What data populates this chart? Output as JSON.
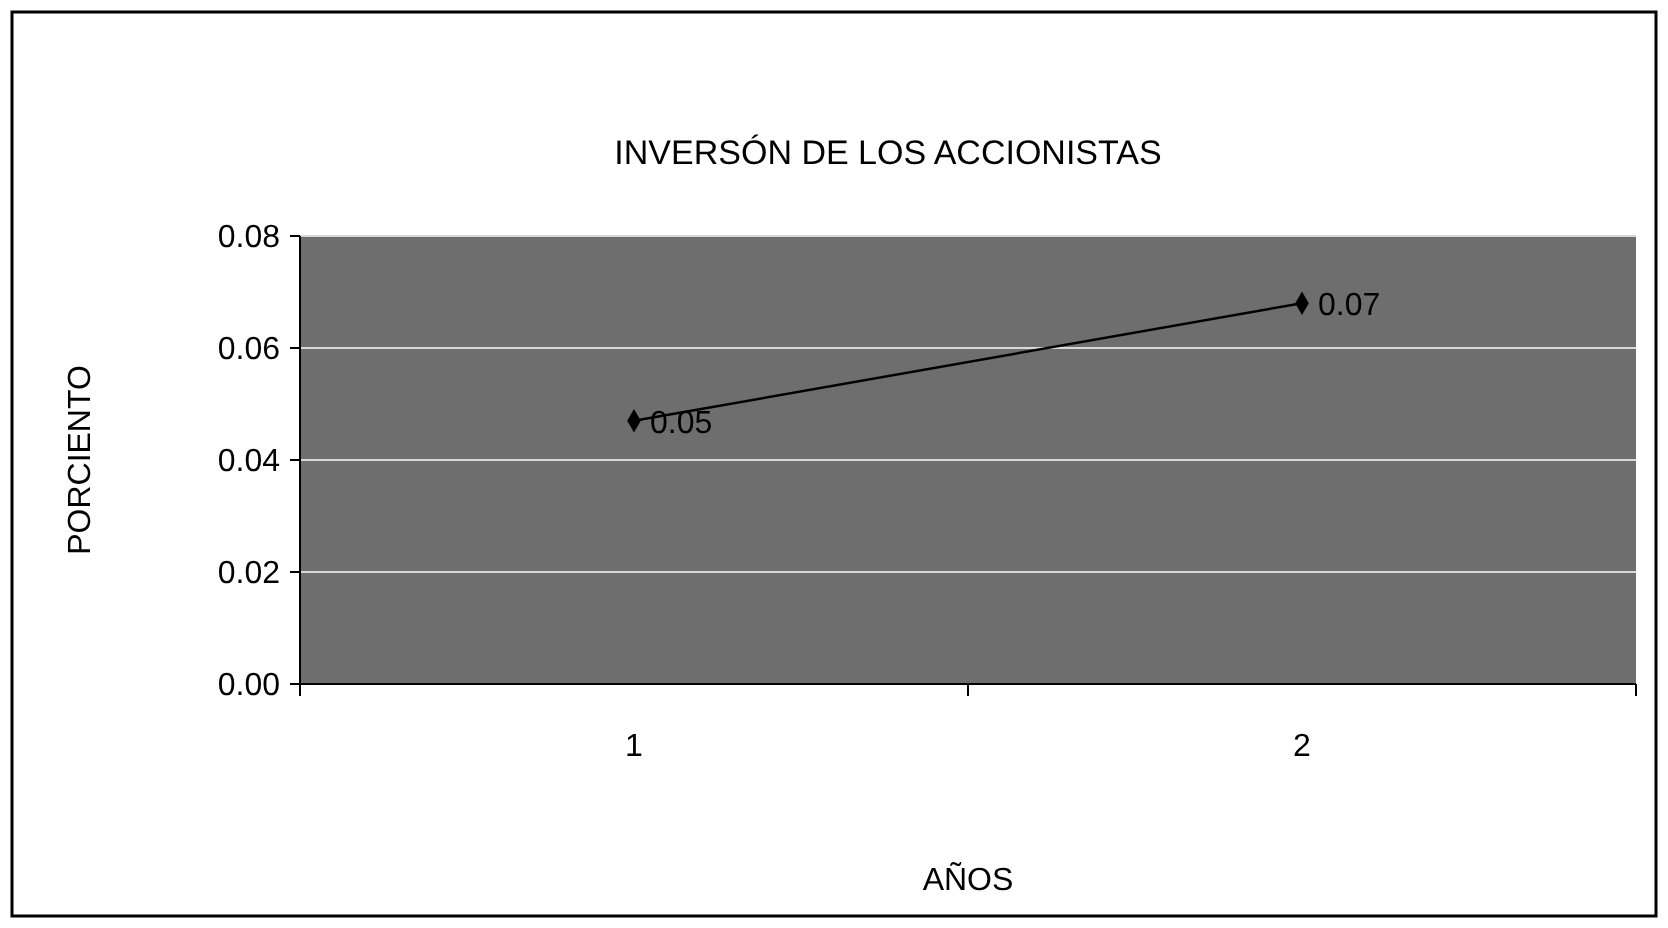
{
  "chart_data": {
    "type": "line",
    "title": "INVERSÓN DE LOS ACCIONISTAS",
    "xlabel": "AÑOS",
    "ylabel": "PORCIENTO",
    "categories": [
      "1",
      "2"
    ],
    "series": [
      {
        "color": "#000000",
        "values": [
          0.047,
          0.068
        ],
        "value_labels": [
          "0.05",
          "0.07"
        ]
      }
    ],
    "ylim": [
      0,
      0.08
    ],
    "yticks": [
      {
        "value": 0,
        "label": "0.00"
      },
      {
        "value": 0.02,
        "label": "0.02"
      },
      {
        "value": 0.04,
        "label": "0.04"
      },
      {
        "value": 0.06,
        "label": "0.06"
      },
      {
        "value": 0.08,
        "label": "0.08"
      }
    ],
    "grid": "y",
    "marker": "diamond",
    "line_style": "solid"
  }
}
